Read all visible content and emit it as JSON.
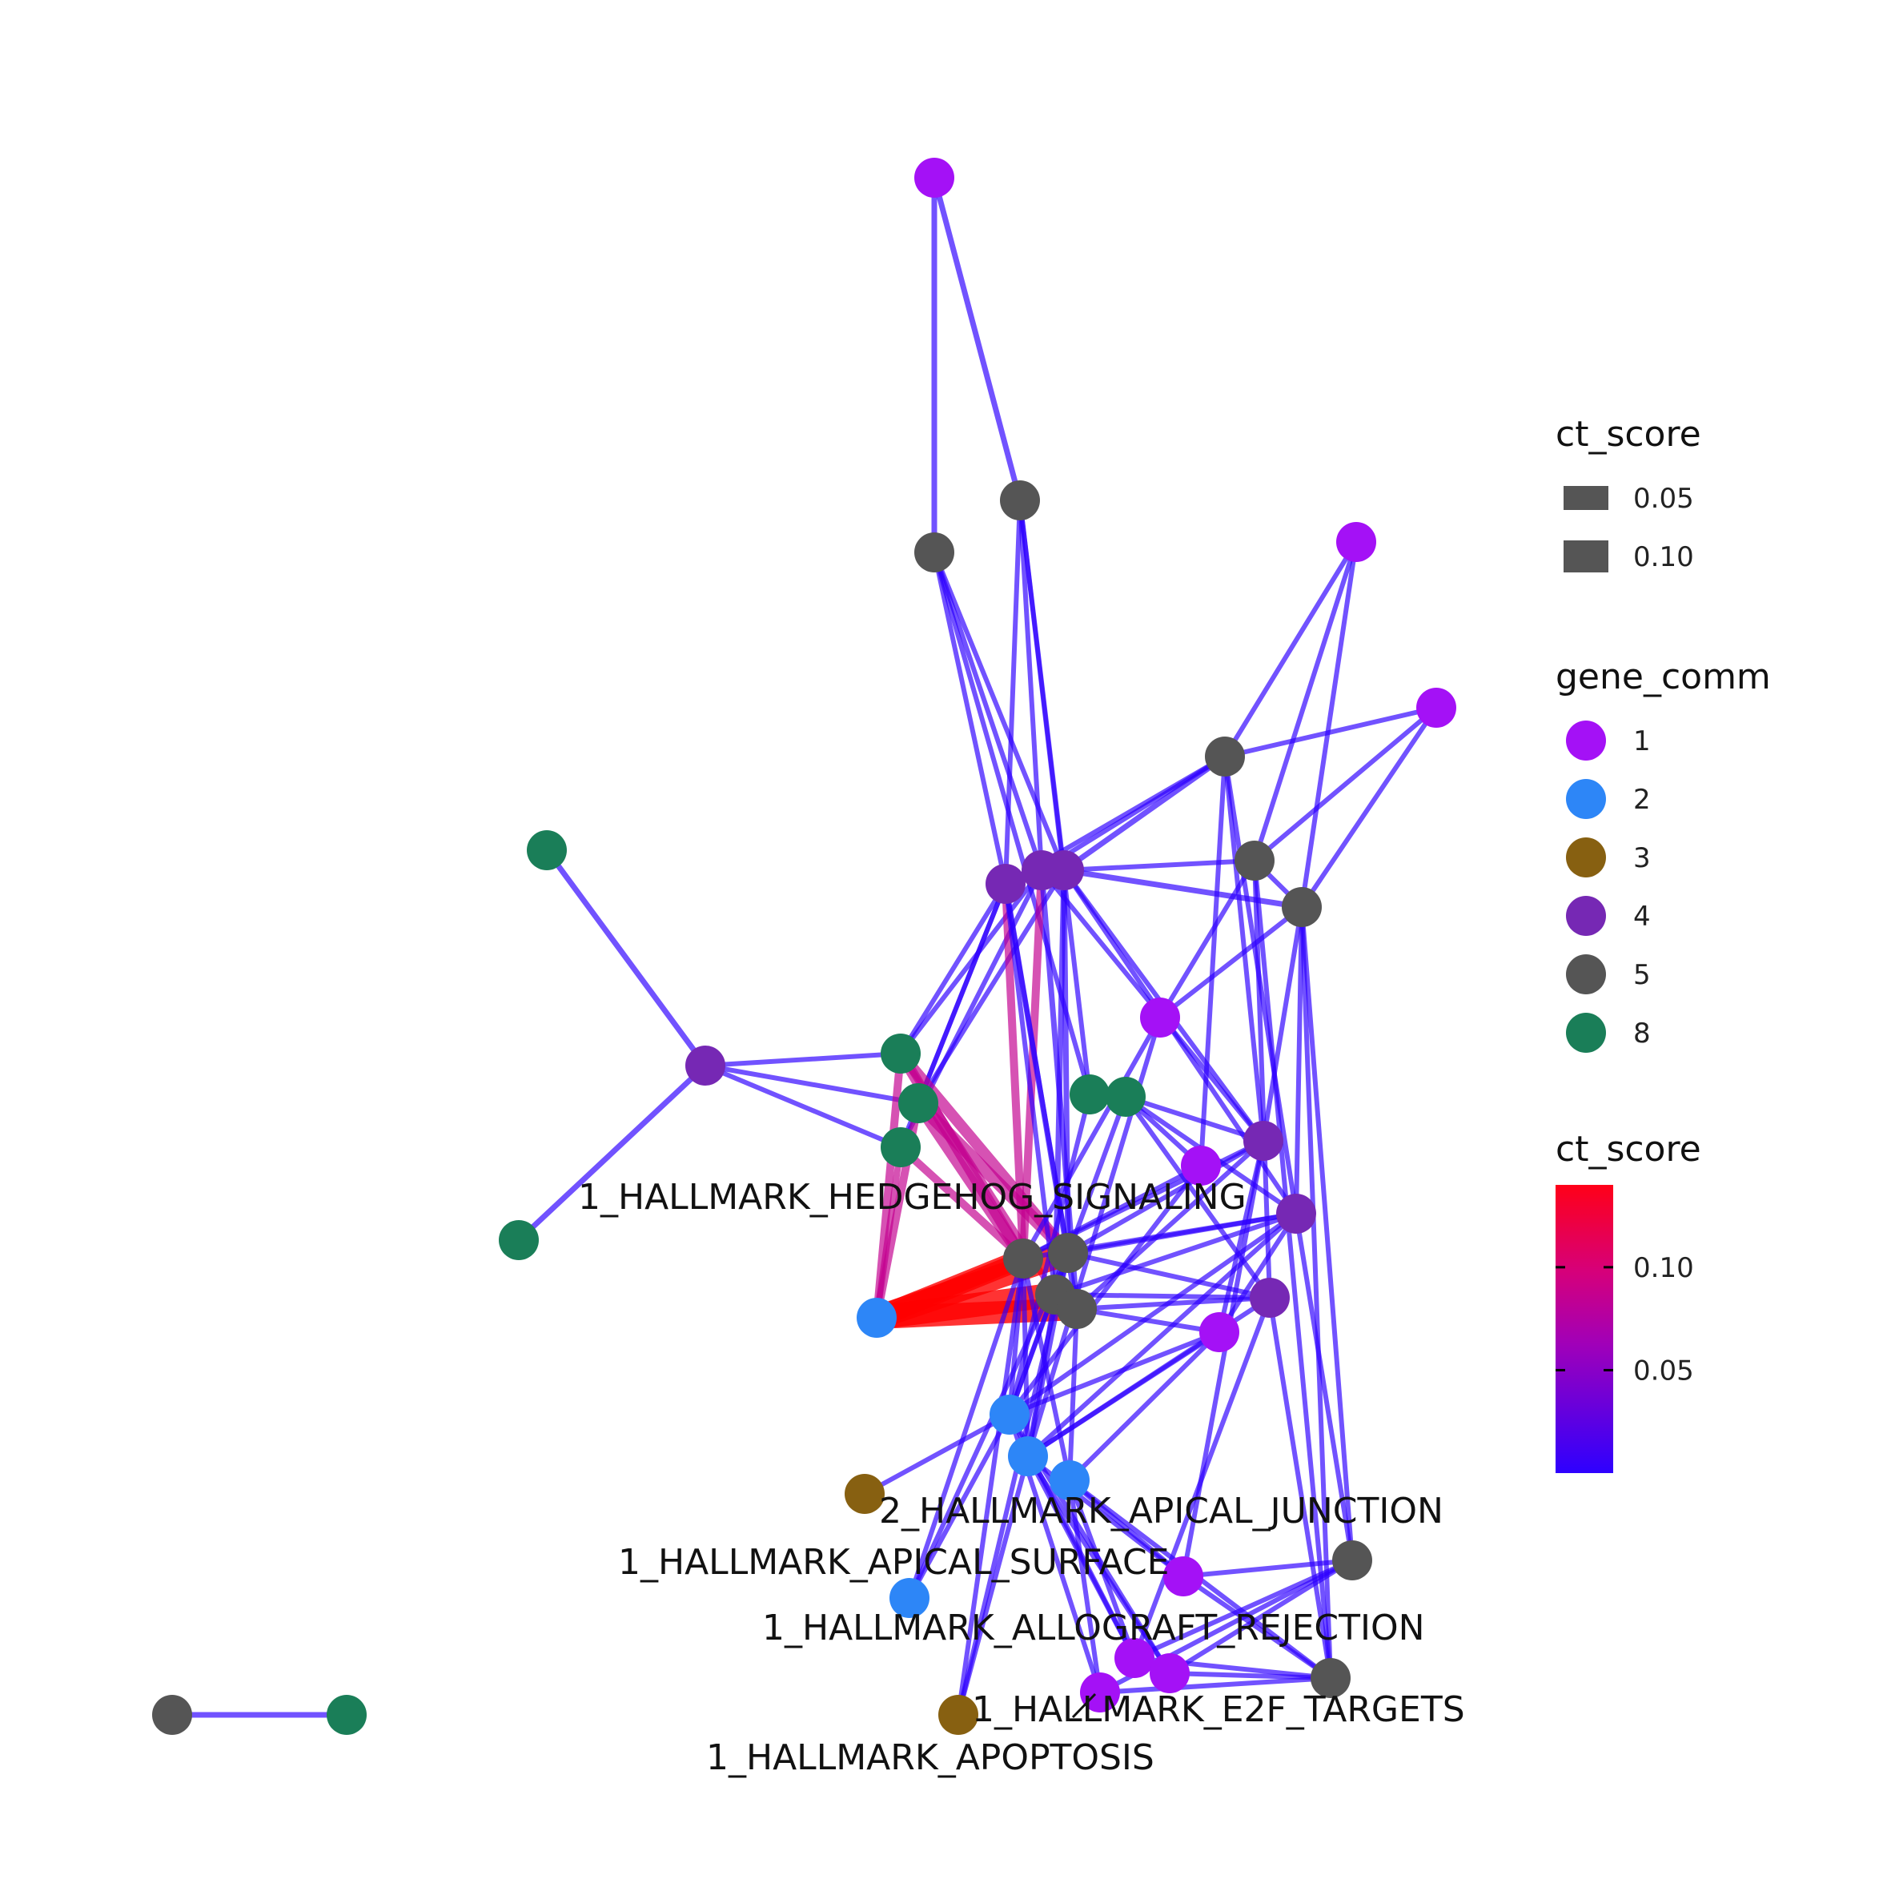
{
  "colors": {
    "comm_1": "#a411f6",
    "comm_2": "#2d86f7",
    "comm_3": "#876011",
    "comm_4": "#7628b4",
    "comm_5": "#555555",
    "comm_8": "#1a7e58",
    "edge_low": "#2e00ff",
    "edge_mid": "#c3008f",
    "edge_high": "#ff0000"
  },
  "legend": {
    "width": {
      "title": "ct_score",
      "items": [
        {
          "label": "0.05",
          "value": 0.05
        },
        {
          "label": "0.10",
          "value": 0.1
        }
      ]
    },
    "color": {
      "title": "gene_comm",
      "items": [
        {
          "label": "1",
          "comm": "1"
        },
        {
          "label": "2",
          "comm": "2"
        },
        {
          "label": "3",
          "comm": "3"
        },
        {
          "label": "4",
          "comm": "4"
        },
        {
          "label": "5",
          "comm": "5"
        },
        {
          "label": "8",
          "comm": "8"
        }
      ]
    },
    "gradient": {
      "title": "ct_score",
      "ticks": [
        {
          "label": "0.10",
          "value": 0.1
        },
        {
          "label": "0.05",
          "value": 0.05
        }
      ],
      "range": [
        0.0,
        0.14
      ]
    }
  },
  "labels": {
    "hedgehog": "1_HALLMARK_HEDGEHOG_SIGNALING",
    "apical_junction": "2_HALLMARK_APICAL_JUNCTION",
    "apical_surface": "1_HALLMARK_APICAL_SURFACE",
    "allograft": "1_HALLMARK_ALLOGRAFT_REJECTION",
    "e2f": "1_HALLMARK_E2F_TARGETS",
    "apoptosis": "1_HALLMARK_APOPTOSIS"
  }
}
